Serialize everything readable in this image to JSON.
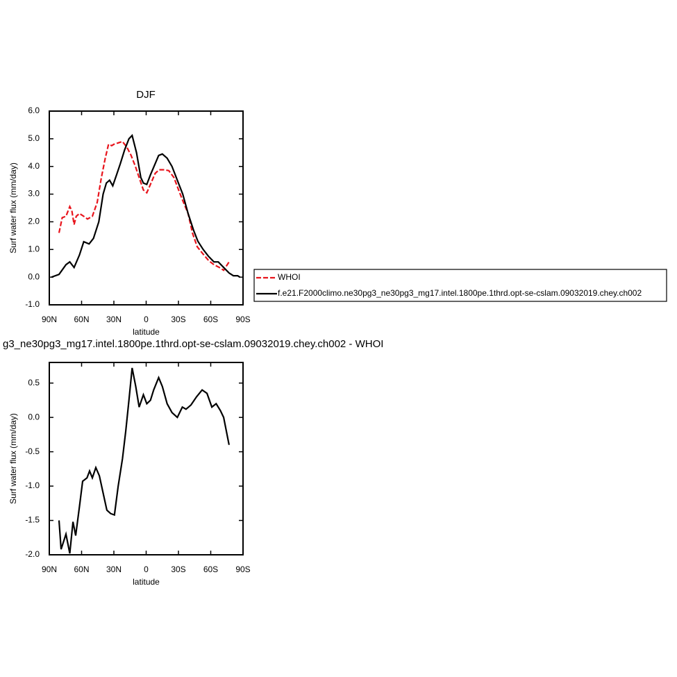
{
  "chart_data": [
    {
      "type": "line",
      "title": "DJF",
      "xlabel": "latitude",
      "ylabel": "Surf water flux (mm/day)",
      "xlim": [
        90,
        -90
      ],
      "ylim": [
        -1,
        6
      ],
      "xticks": [
        {
          "value": 90,
          "label": "90N"
        },
        {
          "value": 60,
          "label": "60N"
        },
        {
          "value": 30,
          "label": "30N"
        },
        0,
        {
          "value": -30,
          "label": "30S"
        },
        {
          "value": -60,
          "label": "60S"
        },
        {
          "value": -90,
          "label": "90S"
        }
      ],
      "yticks": [
        {
          "value": -1,
          "label": "-1.0"
        },
        {
          "value": 0,
          "label": "0.0"
        },
        {
          "value": 1,
          "label": "1.0"
        },
        {
          "value": 2,
          "label": "2.0"
        },
        {
          "value": 3,
          "label": "3.0"
        },
        {
          "value": 4,
          "label": "4.0"
        },
        {
          "value": 5,
          "label": "5.0"
        },
        {
          "value": 6,
          "label": "6.0"
        }
      ],
      "series": [
        {
          "name": "WHOI",
          "color": "#e8141c",
          "dashed": true,
          "x": [
            81,
            78,
            74.5,
            71,
            69,
            67,
            65,
            62,
            58,
            54.5,
            50,
            45.5,
            41.6,
            38,
            35,
            32,
            30,
            26,
            22,
            18,
            14,
            10,
            6.5,
            2.6,
            -0.6,
            -4.5,
            -8.4,
            -12,
            -16.8,
            -21,
            -25.8,
            -29.7,
            -33.6,
            -39,
            -43,
            -47.4,
            -52.6,
            -58,
            -63,
            -68,
            -72,
            -74.5,
            -77
          ],
          "values": [
            1.6,
            2.15,
            2.2,
            2.55,
            2.4,
            1.9,
            2.2,
            2.3,
            2.2,
            2.1,
            2.2,
            2.7,
            3.6,
            4.3,
            4.8,
            4.75,
            4.8,
            4.85,
            4.9,
            4.7,
            4.4,
            4.0,
            3.6,
            3.15,
            3.05,
            3.4,
            3.75,
            3.88,
            3.88,
            3.85,
            3.6,
            3.2,
            2.8,
            2.3,
            1.6,
            1.1,
            0.85,
            0.6,
            0.45,
            0.35,
            0.25,
            0.4,
            0.55
          ]
        },
        {
          "name": "f.e21.F2000climo.ne30pg3_ne30pg3_mg17.intel.1800pe.1thrd.opt-se-cslam.09032019.chey.ch002",
          "color": "#000000",
          "dashed": false,
          "x": [
            88,
            81,
            74.5,
            71,
            67,
            62,
            58,
            53,
            49,
            44,
            40,
            37,
            34,
            31,
            27.5,
            24,
            20,
            16,
            13,
            9,
            5,
            2.6,
            -0.6,
            -4,
            -8.4,
            -11.6,
            -15,
            -19.5,
            -24,
            -29,
            -34,
            -39,
            -44,
            -48,
            -53,
            -58,
            -63,
            -67,
            -72,
            -77,
            -81,
            -85,
            -87
          ],
          "values": [
            0,
            0.1,
            0.45,
            0.55,
            0.35,
            0.8,
            1.28,
            1.2,
            1.4,
            2.0,
            3.0,
            3.4,
            3.5,
            3.3,
            3.7,
            4.1,
            4.6,
            5.0,
            5.12,
            4.5,
            3.6,
            3.4,
            3.35,
            3.7,
            4.1,
            4.4,
            4.45,
            4.3,
            4.0,
            3.5,
            3.0,
            2.3,
            1.7,
            1.3,
            1.0,
            0.75,
            0.55,
            0.55,
            0.35,
            0.15,
            0.05,
            0.05,
            0
          ]
        }
      ]
    },
    {
      "type": "line",
      "title": "g3_ne30pg3_mg17.intel.1800pe.1thrd.opt-se-cslam.09032019.chey.ch002 - WHOI",
      "xlabel": "latitude",
      "ylabel": "Surf water flux (mm/day)",
      "xlim": [
        90,
        -90
      ],
      "ylim": [
        -2,
        0.8
      ],
      "xticks": [
        {
          "value": 90,
          "label": "90N"
        },
        {
          "value": 60,
          "label": "60N"
        },
        {
          "value": 30,
          "label": "30N"
        },
        0,
        {
          "value": -30,
          "label": "30S"
        },
        {
          "value": -60,
          "label": "60S"
        },
        {
          "value": -90,
          "label": "90S"
        }
      ],
      "yticks": [
        {
          "value": -2,
          "label": "-2.0"
        },
        {
          "value": -1.5,
          "label": "-1.5"
        },
        {
          "value": -1,
          "label": "-1.0"
        },
        {
          "value": -0.5,
          "label": "-0.5"
        },
        {
          "value": 0,
          "label": "0.0"
        },
        {
          "value": 0.5,
          "label": "0.5"
        }
      ],
      "color": "#000000",
      "x": [
        81,
        79,
        74.5,
        71,
        68,
        65.5,
        62,
        59,
        55,
        52.6,
        50,
        46.8,
        43.5,
        40,
        36.5,
        33,
        29.5,
        26,
        22,
        19,
        16,
        13,
        9.7,
        6.5,
        2.6,
        -0.6,
        -4,
        -7,
        -11.6,
        -15,
        -19.5,
        -24,
        -29,
        -33.6,
        -37,
        -41.6,
        -46.8,
        -52,
        -56.5,
        -61,
        -65,
        -69,
        -72,
        -77
      ],
      "values": [
        -1.5,
        -1.92,
        -1.7,
        -1.98,
        -1.52,
        -1.72,
        -1.3,
        -0.93,
        -0.88,
        -0.78,
        -0.88,
        -0.73,
        -0.85,
        -1.1,
        -1.35,
        -1.4,
        -1.42,
        -1.0,
        -0.6,
        -0.2,
        0.25,
        0.72,
        0.45,
        0.15,
        0.33,
        0.2,
        0.25,
        0.4,
        0.58,
        0.45,
        0.2,
        0.07,
        0.0,
        0.15,
        0.12,
        0.18,
        0.3,
        0.4,
        0.35,
        0.15,
        0.2,
        0.1,
        0.0,
        -0.4
      ]
    }
  ]
}
